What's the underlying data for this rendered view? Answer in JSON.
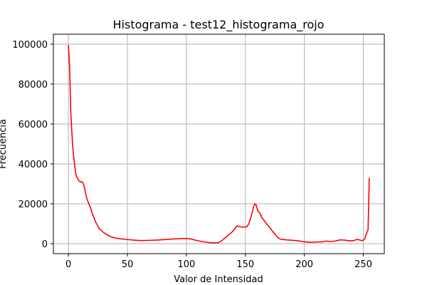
{
  "chart_data": {
    "type": "line",
    "title": "Histograma - test12_histograma_rojo",
    "xlabel": "Valor de Intensidad",
    "ylabel": "Frecuencia",
    "xlim": [
      -12.75,
      267.75
    ],
    "ylim": [
      -5000,
      105000
    ],
    "xticks": [
      0,
      50,
      100,
      150,
      200,
      250
    ],
    "yticks": [
      0,
      20000,
      40000,
      60000,
      80000,
      100000
    ],
    "grid": true,
    "series": [
      {
        "color": "#ff0000",
        "points": [
          [
            0,
            99500
          ],
          [
            1,
            89000
          ],
          [
            2,
            66000
          ],
          [
            3,
            55000
          ],
          [
            4,
            46000
          ],
          [
            5,
            40500
          ],
          [
            6,
            36000
          ],
          [
            7,
            33500
          ],
          [
            8,
            32500
          ],
          [
            9,
            31500
          ],
          [
            10,
            31000
          ],
          [
            11,
            31200
          ],
          [
            12,
            30800
          ],
          [
            13,
            29500
          ],
          [
            14,
            27000
          ],
          [
            15,
            24000
          ],
          [
            16,
            22000
          ],
          [
            17,
            20500
          ],
          [
            18,
            19000
          ],
          [
            19,
            17500
          ],
          [
            20,
            15500
          ],
          [
            21,
            14000
          ],
          [
            22,
            12500
          ],
          [
            23,
            11000
          ],
          [
            24,
            9800
          ],
          [
            25,
            8800
          ],
          [
            26,
            7800
          ],
          [
            27,
            7000
          ],
          [
            28,
            6500
          ],
          [
            29,
            6000
          ],
          [
            30,
            5500
          ],
          [
            32,
            4800
          ],
          [
            34,
            4100
          ],
          [
            36,
            3500
          ],
          [
            38,
            3100
          ],
          [
            40,
            2800
          ],
          [
            45,
            2400
          ],
          [
            50,
            2100
          ],
          [
            55,
            1800
          ],
          [
            60,
            1600
          ],
          [
            65,
            1600
          ],
          [
            70,
            1700
          ],
          [
            75,
            1800
          ],
          [
            80,
            2000
          ],
          [
            85,
            2200
          ],
          [
            90,
            2400
          ],
          [
            95,
            2500
          ],
          [
            100,
            2600
          ],
          [
            104,
            2300
          ],
          [
            108,
            1700
          ],
          [
            112,
            1200
          ],
          [
            116,
            800
          ],
          [
            120,
            500
          ],
          [
            124,
            400
          ],
          [
            127,
            500
          ],
          [
            130,
            1500
          ],
          [
            133,
            3000
          ],
          [
            136,
            4500
          ],
          [
            139,
            6000
          ],
          [
            141,
            7500
          ],
          [
            143,
            9000
          ],
          [
            145,
            8500
          ],
          [
            148,
            8300
          ],
          [
            151,
            8400
          ],
          [
            153,
            10000
          ],
          [
            155,
            14000
          ],
          [
            157,
            18500
          ],
          [
            158,
            20000
          ],
          [
            159,
            19500
          ],
          [
            160,
            17500
          ],
          [
            161,
            16000
          ],
          [
            162,
            15500
          ],
          [
            163,
            14500
          ],
          [
            164,
            13000
          ],
          [
            166,
            11500
          ],
          [
            168,
            10000
          ],
          [
            170,
            8500
          ],
          [
            172,
            7000
          ],
          [
            174,
            5500
          ],
          [
            176,
            4000
          ],
          [
            178,
            2800
          ],
          [
            180,
            2200
          ],
          [
            185,
            1900
          ],
          [
            190,
            1700
          ],
          [
            195,
            1400
          ],
          [
            200,
            900
          ],
          [
            205,
            700
          ],
          [
            210,
            800
          ],
          [
            215,
            900
          ],
          [
            218,
            1300
          ],
          [
            222,
            1100
          ],
          [
            226,
            1300
          ],
          [
            230,
            1900
          ],
          [
            234,
            1800
          ],
          [
            238,
            1400
          ],
          [
            242,
            1600
          ],
          [
            245,
            2200
          ],
          [
            247,
            1800
          ],
          [
            249,
            1500
          ],
          [
            251,
            2200
          ],
          [
            252,
            4000
          ],
          [
            253,
            5500
          ],
          [
            254,
            7000
          ],
          [
            255,
            33000
          ]
        ]
      }
    ]
  }
}
